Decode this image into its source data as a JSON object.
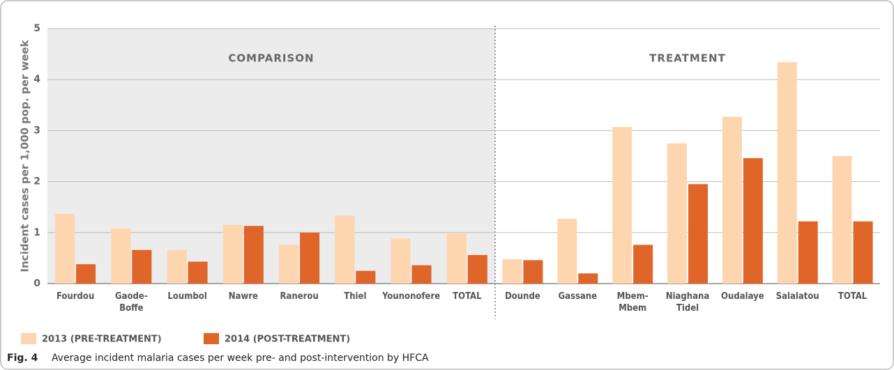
{
  "chart_data": {
    "type": "bar",
    "ylabel": "Incident cases per 1,000 pop. per week",
    "ylim": [
      0,
      5
    ],
    "yticks": [
      0,
      1,
      2,
      3,
      4,
      5
    ],
    "grid": true,
    "legend": [
      {
        "name": "2013 (PRE-TREATMENT)",
        "color": "#fdd6b0"
      },
      {
        "name": "2014 (POST-TREATMENT)",
        "color": "#df6528"
      }
    ],
    "groups": [
      {
        "title": "COMPARISON",
        "categories": [
          "Fourdou",
          "Gaode-Boffe",
          "Loumbol",
          "Nawre",
          "Ranerou",
          "Thiel",
          "Younonofere",
          "TOTAL"
        ],
        "series": [
          {
            "values": [
              1.37,
              1.08,
              0.66,
              1.15,
              0.76,
              1.33,
              0.88,
              0.98
            ]
          },
          {
            "values": [
              0.38,
              0.66,
              0.43,
              1.13,
              1.0,
              0.25,
              0.36,
              0.56
            ]
          }
        ]
      },
      {
        "title": "TREATMENT",
        "categories": [
          "Dounde",
          "Gassane",
          "Mbem-Mbem",
          "Niaghana Tidel",
          "Oudalaye",
          "Salalatou",
          "TOTAL"
        ],
        "series": [
          {
            "values": [
              0.48,
              1.27,
              3.07,
              2.75,
              3.27,
              4.34,
              2.5
            ]
          },
          {
            "values": [
              0.46,
              0.2,
              0.76,
              1.95,
              2.46,
              1.22,
              1.22
            ]
          }
        ]
      }
    ],
    "caption": {
      "label": "Fig. 4",
      "text": "Average incident malaria cases per week pre- and post-intervention by HFCA"
    }
  }
}
